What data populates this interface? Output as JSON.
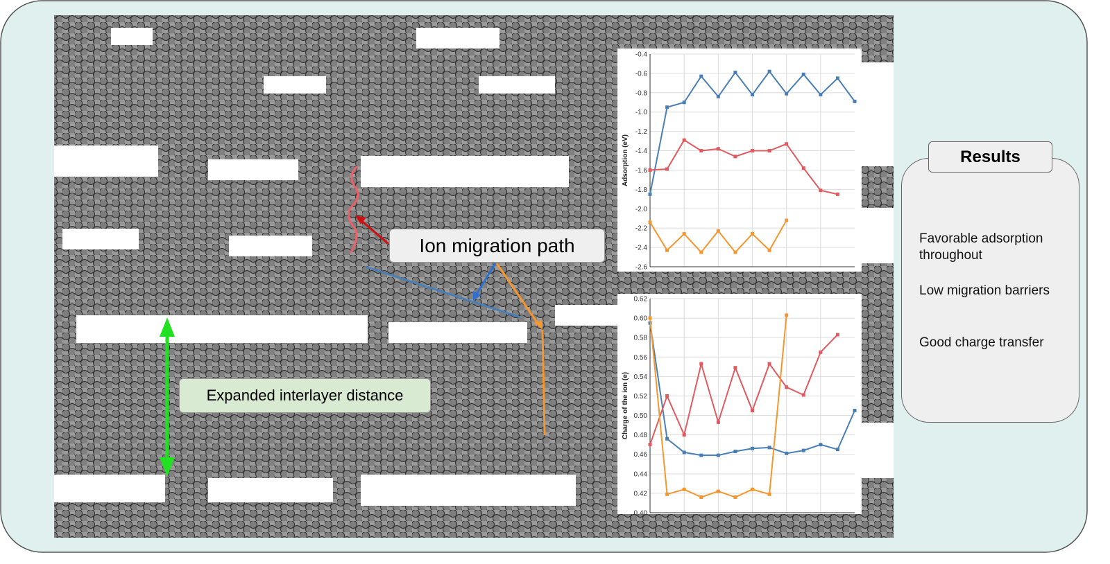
{
  "annotations": {
    "migration": "Ion migration path",
    "interlayer": "Expanded interlayer distance"
  },
  "results": {
    "title": "Results",
    "items": [
      "Favorable adsorption throughout",
      "Low migration barriers",
      "Good charge transfer"
    ]
  },
  "chart_data": [
    {
      "type": "line",
      "ylabel": "Adsorption (eV)",
      "categories": [
        null,
        null,
        null,
        null,
        null,
        null,
        null,
        null,
        null,
        null,
        null,
        null,
        null
      ],
      "series": [
        {
          "color": "#4a7fb5",
          "values": [
            -1.85,
            -0.95,
            -0.9,
            -0.63,
            -0.84,
            -0.59,
            -0.82,
            -0.58,
            -0.81,
            -0.61,
            -0.82,
            -0.65,
            -0.89
          ]
        },
        {
          "color": "#e05a5f",
          "values": [
            -1.6,
            -1.59,
            -1.29,
            -1.4,
            -1.38,
            -1.46,
            -1.4,
            -1.4,
            -1.33,
            -1.58,
            -1.81,
            -1.85,
            null
          ]
        },
        {
          "color": "#f5962e",
          "values": [
            -2.14,
            -2.43,
            -2.26,
            -2.45,
            -2.23,
            -2.45,
            -2.26,
            -2.43,
            -2.12,
            null,
            null,
            null,
            null
          ]
        }
      ],
      "ylim": [
        -2.6,
        -0.4
      ],
      "yticks": [
        -0.4,
        -0.6,
        -0.8,
        {
          "value": -1,
          "label": "-1.0"
        },
        -1.2,
        -1.4,
        -1.6,
        -1.8,
        {
          "value": -2,
          "label": "-2.0"
        },
        -2.2,
        -2.4,
        -2.6
      ],
      "grid": true
    },
    {
      "type": "line",
      "ylabel": "Charge of the ion (e)",
      "categories": [
        null,
        null,
        null,
        null,
        null,
        null,
        null,
        null,
        null,
        null,
        null,
        null,
        null
      ],
      "series": [
        {
          "color": "#4a7fb5",
          "values": [
            0.595,
            0.476,
            0.462,
            0.459,
            0.459,
            0.463,
            0.466,
            0.467,
            0.461,
            0.464,
            0.47,
            0.465,
            0.505
          ]
        },
        {
          "color": "#e05a5f",
          "values": [
            0.47,
            0.52,
            0.48,
            0.553,
            0.493,
            0.549,
            0.505,
            0.553,
            0.529,
            0.521,
            0.565,
            0.583,
            null
          ]
        },
        {
          "color": "#f5962e",
          "values": [
            0.6,
            0.419,
            0.424,
            0.416,
            0.422,
            0.416,
            0.424,
            0.419,
            0.603,
            null,
            null,
            null,
            null
          ]
        }
      ],
      "ylim": [
        0.4,
        0.62
      ],
      "yticks": [
        {
          "value": 0.4,
          "label": "0.40"
        },
        0.42,
        0.44,
        0.46,
        0.48,
        {
          "value": 0.5,
          "label": "0.50"
        },
        0.52,
        0.54,
        0.56,
        0.58,
        {
          "value": 0.6,
          "label": "0.60"
        },
        0.62
      ],
      "grid": true
    }
  ]
}
